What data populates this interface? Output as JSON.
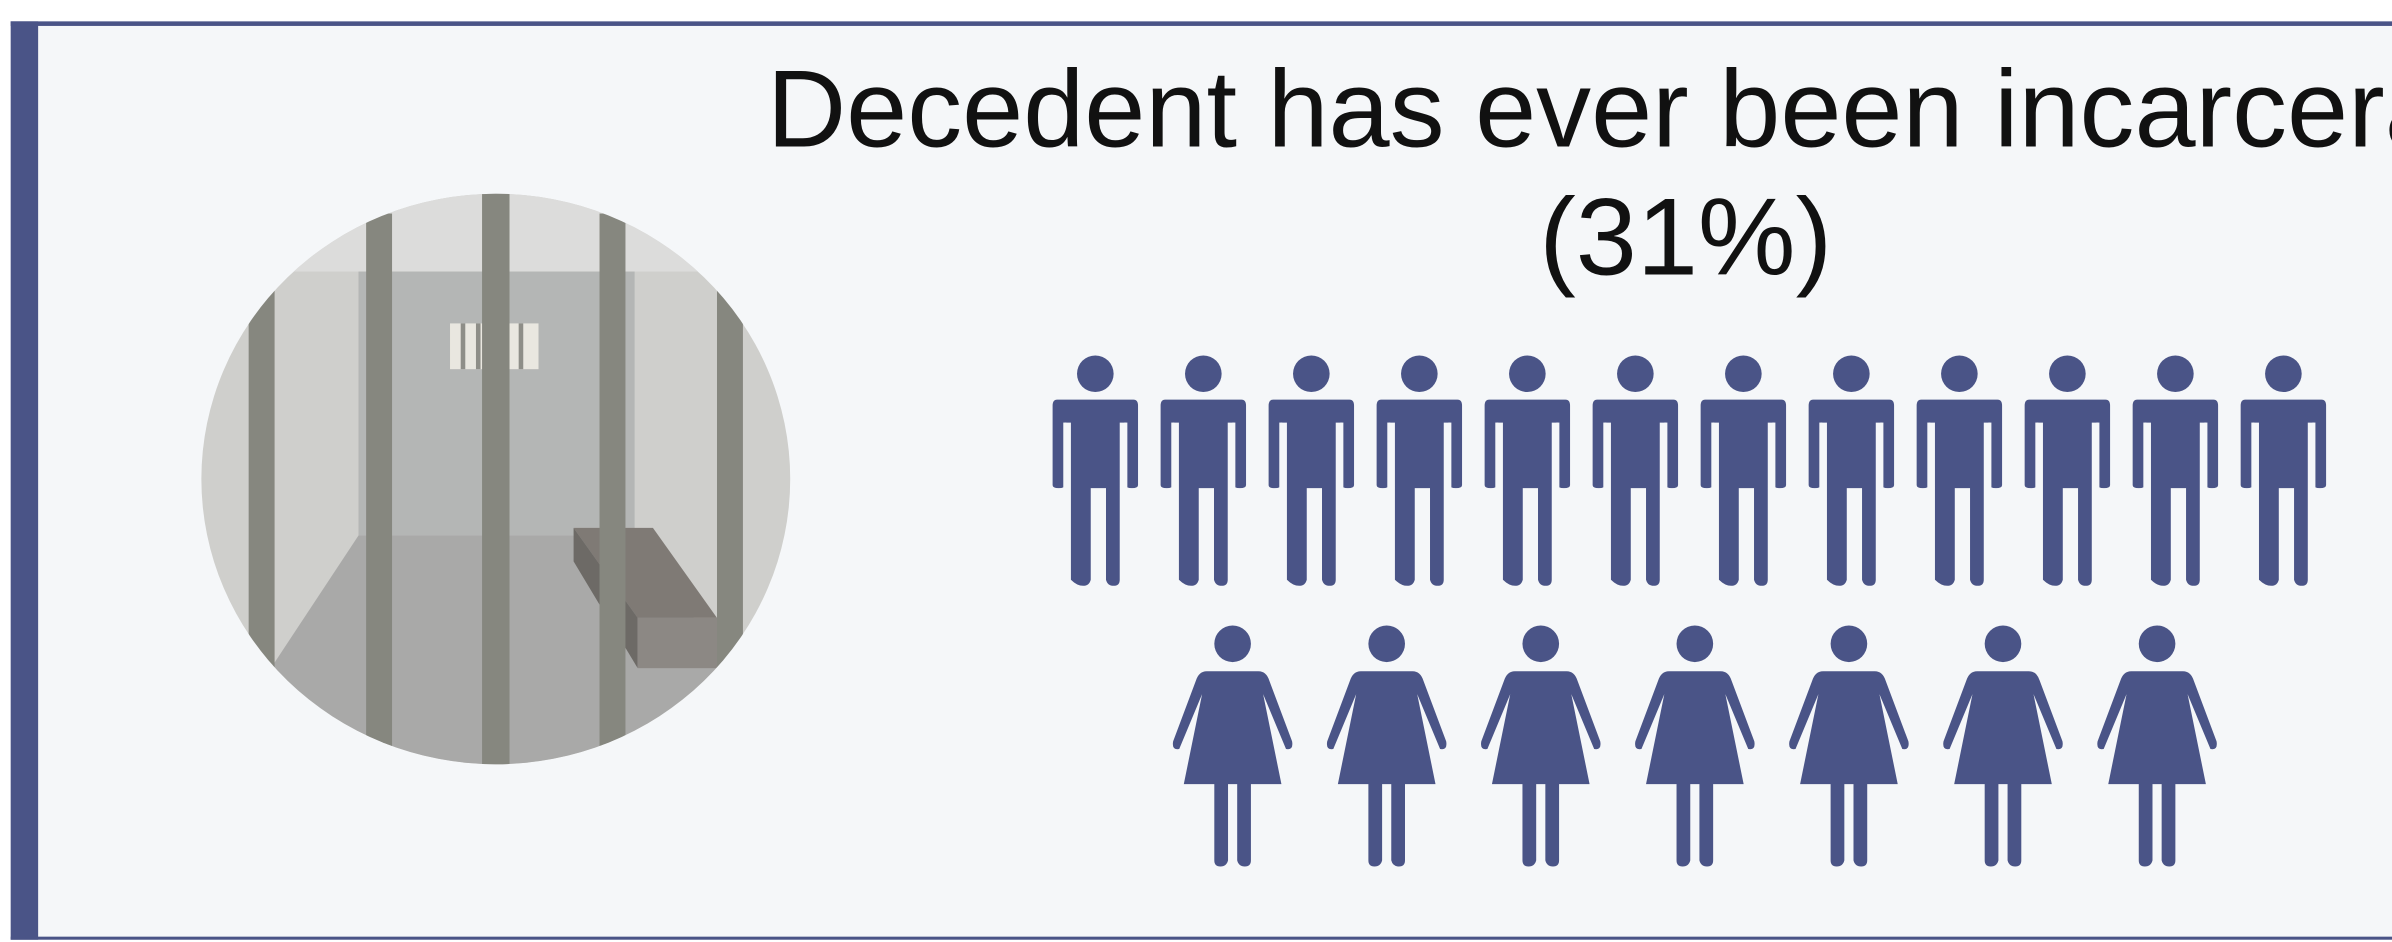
{
  "title": {
    "line1": "Decedent has ever been incarcerated",
    "line2": "(31%)"
  }
}
